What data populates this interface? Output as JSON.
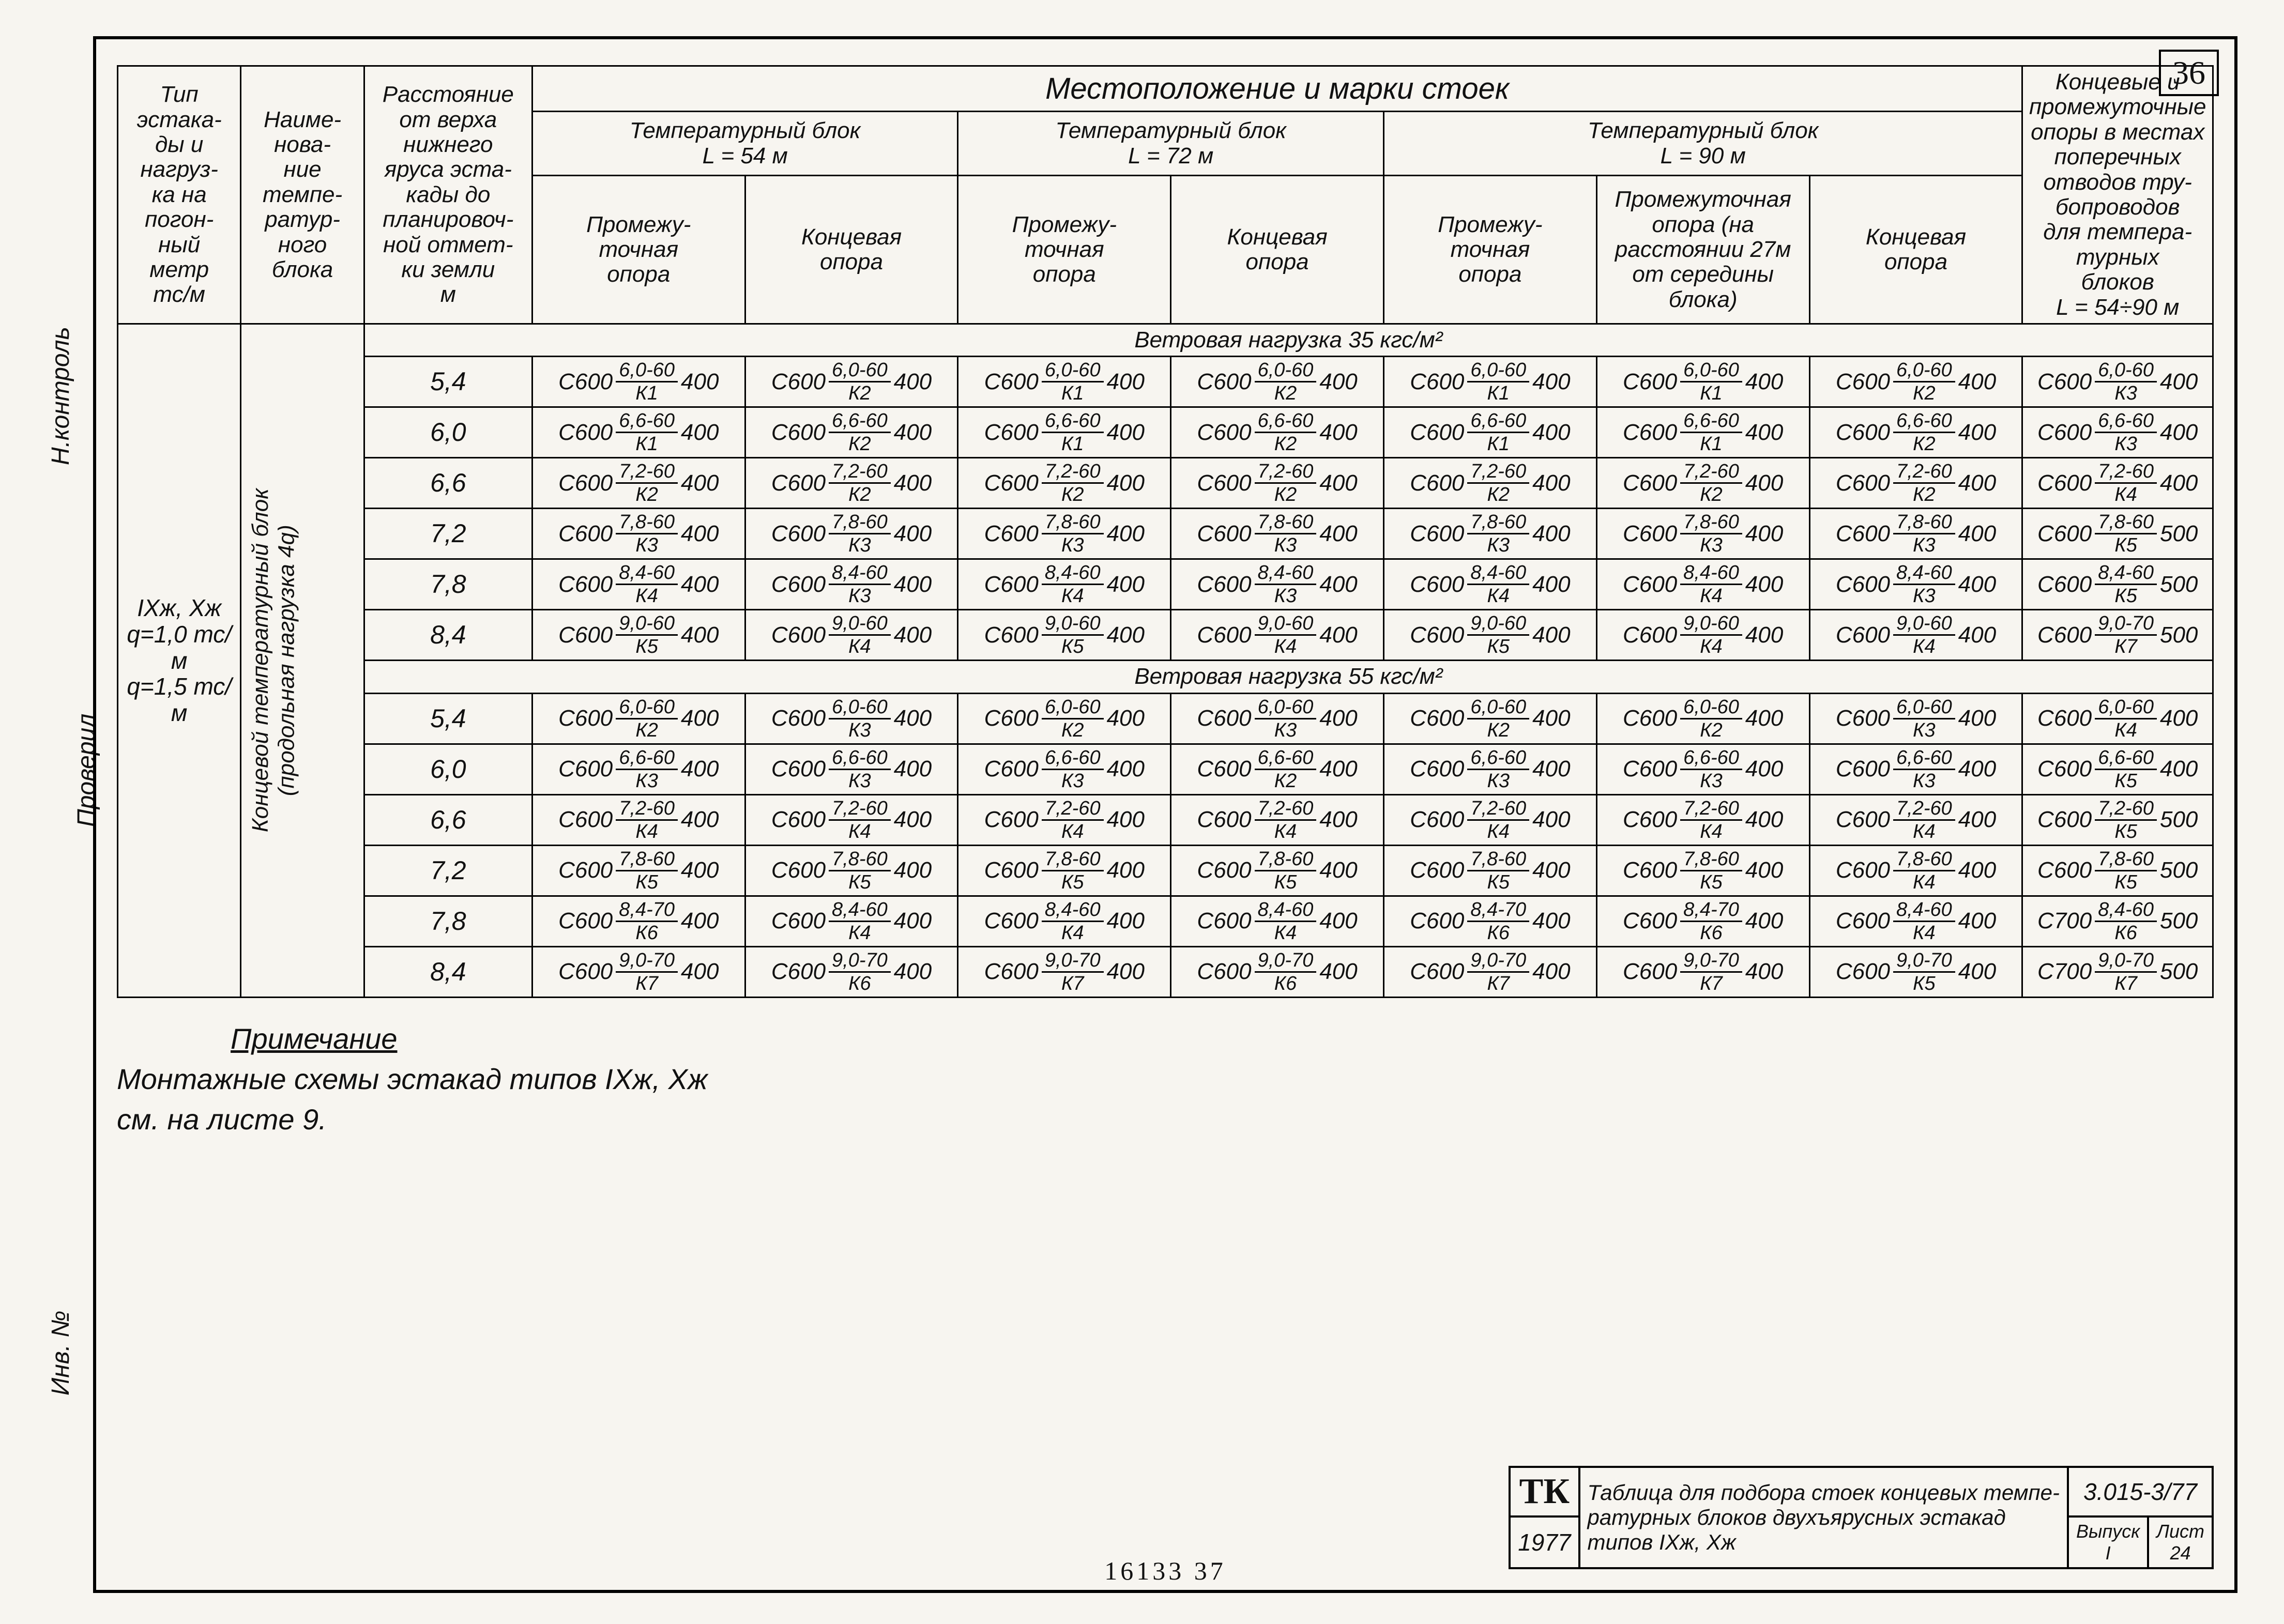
{
  "page_number": "36",
  "left_margin": {
    "t1": "Инв. №",
    "t2": "Проверил",
    "t3": "Н.контроль"
  },
  "headers": {
    "type": "Тип эстака-\nды и\nнагруз-\nка на\nпогон-\nный\nметр\nтс/м",
    "name": "Наиме-\nнова-\nние\nтемпе-\nратур-\nного\nблока",
    "dist": "Расстояние\nот верха\nнижнего\nяруса эста-\nкады до\nпланировоч-\nной отмет-\nки земли\nм",
    "loc_title": "Местоположение   и   марки   стоек",
    "block54": "Температурный  блок\nL = 54 м",
    "block72": "Температурный  блок\nL = 72 м",
    "block90": "Температурный   блок\nL = 90 м",
    "inter": "Промежу-\nточная\nопора",
    "end": "Концевая\nопора",
    "inter2": "Промежуточная\nопора (на\nрасстоянии 27м\nот середины\nблока)",
    "right": "Концевые и\nпромежуточные\nопоры в местах\nпоперечных\nотводов тру-\nбопроводов\nдля темпера-\nтурных\nблоков\nL = 54÷90 м"
  },
  "row_label": {
    "type_vals": "IXж, Xж\nq=1,0 тс/м\nq=1,5 тс/м",
    "name_val": "Концевой температурный блок\n(продольная нагрузка 4q)"
  },
  "sections": [
    {
      "title": "Ветровая   нагрузка   35 кгс/м²",
      "rows": [
        {
          "h": "5,4",
          "cells": [
            [
              "С600",
              "6,0-60",
              "К1",
              "400"
            ],
            [
              "С600",
              "6,0-60",
              "К2",
              "400"
            ],
            [
              "С600",
              "6,0-60",
              "К1",
              "400"
            ],
            [
              "С600",
              "6,0-60",
              "К2",
              "400"
            ],
            [
              "С600",
              "6,0-60",
              "К1",
              "400"
            ],
            [
              "С600",
              "6,0-60",
              "К1",
              "400"
            ],
            [
              "С600",
              "6,0-60",
              "К2",
              "400"
            ],
            [
              "С600",
              "6,0-60",
              "К3",
              "400"
            ]
          ]
        },
        {
          "h": "6,0",
          "cells": [
            [
              "С600",
              "6,6-60",
              "К1",
              "400"
            ],
            [
              "С600",
              "6,6-60",
              "К2",
              "400"
            ],
            [
              "С600",
              "6,6-60",
              "К1",
              "400"
            ],
            [
              "С600",
              "6,6-60",
              "К2",
              "400"
            ],
            [
              "С600",
              "6,6-60",
              "К1",
              "400"
            ],
            [
              "С600",
              "6,6-60",
              "К1",
              "400"
            ],
            [
              "С600",
              "6,6-60",
              "К2",
              "400"
            ],
            [
              "С600",
              "6,6-60",
              "К3",
              "400"
            ]
          ]
        },
        {
          "h": "6,6",
          "cells": [
            [
              "С600",
              "7,2-60",
              "К2",
              "400"
            ],
            [
              "С600",
              "7,2-60",
              "К2",
              "400"
            ],
            [
              "С600",
              "7,2-60",
              "К2",
              "400"
            ],
            [
              "С600",
              "7,2-60",
              "К2",
              "400"
            ],
            [
              "С600",
              "7,2-60",
              "К2",
              "400"
            ],
            [
              "С600",
              "7,2-60",
              "К2",
              "400"
            ],
            [
              "С600",
              "7,2-60",
              "К2",
              "400"
            ],
            [
              "С600",
              "7,2-60",
              "К4",
              "400"
            ]
          ]
        },
        {
          "h": "7,2",
          "cells": [
            [
              "С600",
              "7,8-60",
              "К3",
              "400"
            ],
            [
              "С600",
              "7,8-60",
              "К3",
              "400"
            ],
            [
              "С600",
              "7,8-60",
              "К3",
              "400"
            ],
            [
              "С600",
              "7,8-60",
              "К3",
              "400"
            ],
            [
              "С600",
              "7,8-60",
              "К3",
              "400"
            ],
            [
              "С600",
              "7,8-60",
              "К3",
              "400"
            ],
            [
              "С600",
              "7,8-60",
              "К3",
              "400"
            ],
            [
              "С600",
              "7,8-60",
              "К5",
              "500"
            ]
          ]
        },
        {
          "h": "7,8",
          "cells": [
            [
              "С600",
              "8,4-60",
              "К4",
              "400"
            ],
            [
              "С600",
              "8,4-60",
              "К3",
              "400"
            ],
            [
              "С600",
              "8,4-60",
              "К4",
              "400"
            ],
            [
              "С600",
              "8,4-60",
              "К3",
              "400"
            ],
            [
              "С600",
              "8,4-60",
              "К4",
              "400"
            ],
            [
              "С600",
              "8,4-60",
              "К4",
              "400"
            ],
            [
              "С600",
              "8,4-60",
              "К3",
              "400"
            ],
            [
              "С600",
              "8,4-60",
              "К5",
              "500"
            ]
          ]
        },
        {
          "h": "8,4",
          "cells": [
            [
              "С600",
              "9,0-60",
              "К5",
              "400"
            ],
            [
              "С600",
              "9,0-60",
              "К4",
              "400"
            ],
            [
              "С600",
              "9,0-60",
              "К5",
              "400"
            ],
            [
              "С600",
              "9,0-60",
              "К4",
              "400"
            ],
            [
              "С600",
              "9,0-60",
              "К5",
              "400"
            ],
            [
              "С600",
              "9,0-60",
              "К4",
              "400"
            ],
            [
              "С600",
              "9,0-60",
              "К4",
              "400"
            ],
            [
              "С600",
              "9,0-70",
              "К7",
              "500"
            ]
          ]
        }
      ]
    },
    {
      "title": "Ветровая   нагрузка   55 кгс/м²",
      "rows": [
        {
          "h": "5,4",
          "cells": [
            [
              "С600",
              "6,0-60",
              "К2",
              "400"
            ],
            [
              "С600",
              "6,0-60",
              "К3",
              "400"
            ],
            [
              "С600",
              "6,0-60",
              "К2",
              "400"
            ],
            [
              "С600",
              "6,0-60",
              "К3",
              "400"
            ],
            [
              "С600",
              "6,0-60",
              "К2",
              "400"
            ],
            [
              "С600",
              "6,0-60",
              "К2",
              "400"
            ],
            [
              "С600",
              "6,0-60",
              "К3",
              "400"
            ],
            [
              "С600",
              "6,0-60",
              "К4",
              "400"
            ]
          ]
        },
        {
          "h": "6,0",
          "cells": [
            [
              "С600",
              "6,6-60",
              "К3",
              "400"
            ],
            [
              "С600",
              "6,6-60",
              "К3",
              "400"
            ],
            [
              "С600",
              "6,6-60",
              "К3",
              "400"
            ],
            [
              "С600",
              "6,6-60",
              "К2",
              "400"
            ],
            [
              "С600",
              "6,6-60",
              "К3",
              "400"
            ],
            [
              "С600",
              "6,6-60",
              "К3",
              "400"
            ],
            [
              "С600",
              "6,6-60",
              "К3",
              "400"
            ],
            [
              "С600",
              "6,6-60",
              "К5",
              "400"
            ]
          ]
        },
        {
          "h": "6,6",
          "cells": [
            [
              "С600",
              "7,2-60",
              "К4",
              "400"
            ],
            [
              "С600",
              "7,2-60",
              "К4",
              "400"
            ],
            [
              "С600",
              "7,2-60",
              "К4",
              "400"
            ],
            [
              "С600",
              "7,2-60",
              "К4",
              "400"
            ],
            [
              "С600",
              "7,2-60",
              "К4",
              "400"
            ],
            [
              "С600",
              "7,2-60",
              "К4",
              "400"
            ],
            [
              "С600",
              "7,2-60",
              "К4",
              "400"
            ],
            [
              "С600",
              "7,2-60",
              "К5",
              "500"
            ]
          ]
        },
        {
          "h": "7,2",
          "cells": [
            [
              "С600",
              "7,8-60",
              "К5",
              "400"
            ],
            [
              "С600",
              "7,8-60",
              "К5",
              "400"
            ],
            [
              "С600",
              "7,8-60",
              "К5",
              "400"
            ],
            [
              "С600",
              "7,8-60",
              "К5",
              "400"
            ],
            [
              "С600",
              "7,8-60",
              "К5",
              "400"
            ],
            [
              "С600",
              "7,8-60",
              "К5",
              "400"
            ],
            [
              "С600",
              "7,8-60",
              "К4",
              "400"
            ],
            [
              "С600",
              "7,8-60",
              "К5",
              "500"
            ]
          ]
        },
        {
          "h": "7,8",
          "cells": [
            [
              "С600",
              "8,4-70",
              "К6",
              "400"
            ],
            [
              "С600",
              "8,4-60",
              "К4",
              "400"
            ],
            [
              "С600",
              "8,4-60",
              "К4",
              "400"
            ],
            [
              "С600",
              "8,4-60",
              "К4",
              "400"
            ],
            [
              "С600",
              "8,4-70",
              "К6",
              "400"
            ],
            [
              "С600",
              "8,4-70",
              "К6",
              "400"
            ],
            [
              "С600",
              "8,4-60",
              "К4",
              "400"
            ],
            [
              "С700",
              "8,4-60",
              "К6",
              "500"
            ]
          ]
        },
        {
          "h": "8,4",
          "cells": [
            [
              "С600",
              "9,0-70",
              "К7",
              "400"
            ],
            [
              "С600",
              "9,0-70",
              "К6",
              "400"
            ],
            [
              "С600",
              "9,0-70",
              "К7",
              "400"
            ],
            [
              "С600",
              "9,0-70",
              "К6",
              "400"
            ],
            [
              "С600",
              "9,0-70",
              "К7",
              "400"
            ],
            [
              "С600",
              "9,0-70",
              "К7",
              "400"
            ],
            [
              "С600",
              "9,0-70",
              "К5",
              "400"
            ],
            [
              "С700",
              "9,0-70",
              "К7",
              "500"
            ]
          ]
        }
      ]
    }
  ],
  "note": {
    "title": "Примечание",
    "body": "Монтажные схемы эстакад типов IXж, Xж\nсм. на листе 9."
  },
  "title_block": {
    "tk": "ТК",
    "year": "1977",
    "desc": "Таблица для подбора стоек концевых темпе-\nратурных блоков двухъярусных эстакад\nтипов IXж, Xж",
    "code": "3.015-3/77",
    "issue_lbl": "Выпуск",
    "issue": "I",
    "sheet_lbl": "Лист",
    "sheet": "24"
  },
  "footer": "16133    37"
}
